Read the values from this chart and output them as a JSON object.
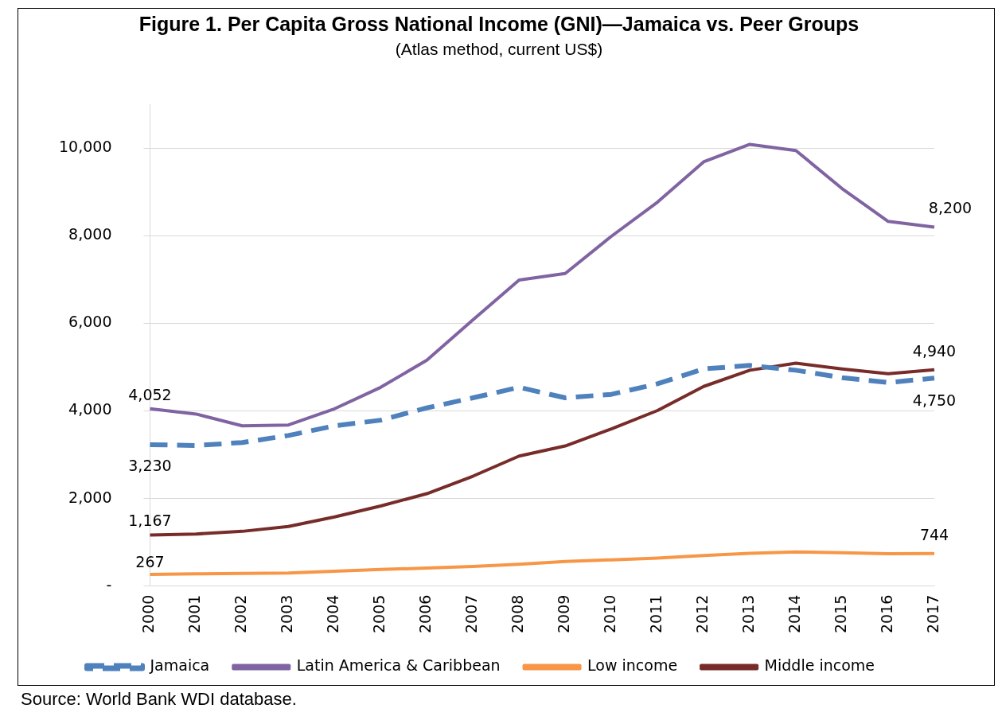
{
  "chart_data": {
    "type": "line",
    "title": "Figure 1. Per Capita Gross National Income (GNI)—Jamaica vs. Peer Groups",
    "subtitle": "(Atlas method, current US$)",
    "categories": [
      "2000",
      "2001",
      "2002",
      "2003",
      "2004",
      "2005",
      "2006",
      "2007",
      "2008",
      "2009",
      "2010",
      "2011",
      "2012",
      "2013",
      "2014",
      "2015",
      "2016",
      "2017"
    ],
    "series": [
      {
        "name": "Jamaica",
        "color": "#4f81bd",
        "line_style": "dashed",
        "values": [
          3230,
          3210,
          3280,
          3440,
          3660,
          3790,
          4070,
          4300,
          4540,
          4300,
          4380,
          4620,
          4960,
          5040,
          4930,
          4760,
          4650,
          4750
        ]
      },
      {
        "name": "Latin America & Caribbean",
        "color": "#8064a2",
        "line_style": "solid",
        "values": [
          4052,
          3930,
          3660,
          3680,
          4050,
          4540,
          5160,
          6080,
          6990,
          7140,
          7990,
          8770,
          9690,
          10090,
          9950,
          9080,
          8330,
          8200
        ]
      },
      {
        "name": "Low income",
        "color": "#f79646",
        "line_style": "solid",
        "values": [
          267,
          280,
          290,
          300,
          340,
          380,
          410,
          450,
          500,
          560,
          600,
          640,
          700,
          750,
          780,
          760,
          740,
          744
        ]
      },
      {
        "name": "Middle income",
        "color": "#772c2a",
        "line_style": "solid",
        "values": [
          1167,
          1190,
          1250,
          1360,
          1580,
          1830,
          2110,
          2510,
          2970,
          3200,
          3590,
          4010,
          4560,
          4930,
          5090,
          4960,
          4850,
          4940
        ]
      }
    ],
    "ylim": [
      0,
      11000
    ],
    "yticks": [
      {
        "value": 0,
        "label": "-"
      },
      {
        "value": 2000,
        "label": "2,000"
      },
      {
        "value": 4000,
        "label": "4,000"
      },
      {
        "value": 6000,
        "label": "6,000"
      },
      {
        "value": 8000,
        "label": "8,000"
      },
      {
        "value": 10000,
        "label": "10,000"
      }
    ],
    "grid": "y",
    "legend": "bottom",
    "marker": "none",
    "annotations": [
      {
        "text": "4,052",
        "x": "2000",
        "y": 4052
      },
      {
        "text": "3,230",
        "x": "2000",
        "y": 3230
      },
      {
        "text": "1,167",
        "x": "2000",
        "y": 1167
      },
      {
        "text": "267",
        "x": "2000",
        "y": 267
      },
      {
        "text": "8,200",
        "x": "2017",
        "y": 8200
      },
      {
        "text": "4,940",
        "x": "2017",
        "y": 4940
      },
      {
        "text": "4,750",
        "x": "2017",
        "y": 4750
      },
      {
        "text": "744",
        "x": "2017",
        "y": 744
      },
      "Source: World Bank WDI database."
    ]
  }
}
